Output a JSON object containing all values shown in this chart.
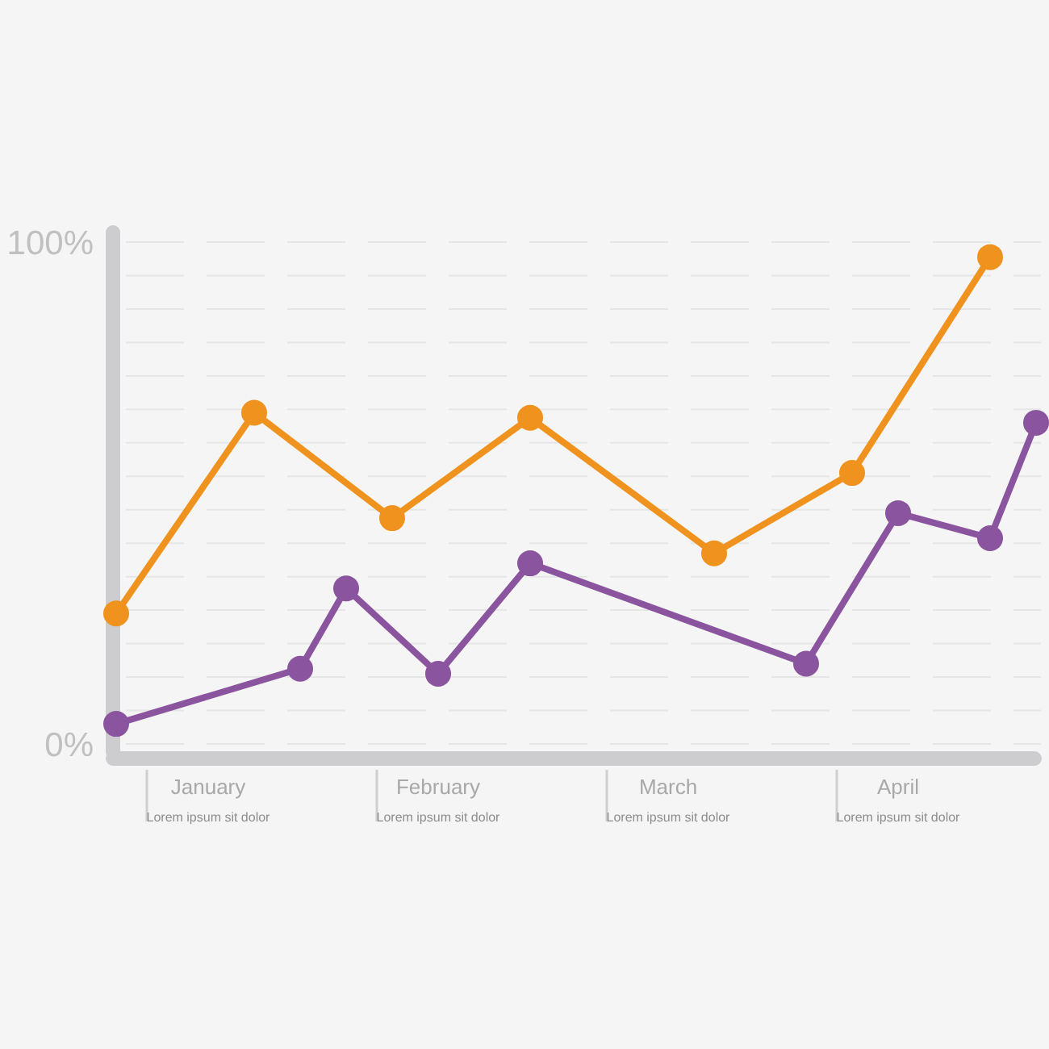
{
  "chart_data": {
    "type": "line",
    "ylim": [
      0,
      100
    ],
    "categories": [
      null,
      null,
      "January\nLorem ipsum sit dolor",
      null,
      null,
      null,
      null,
      "February\nLorem ipsum sit dolor",
      null,
      null,
      null,
      null,
      "March\nLorem ipsum sit dolor",
      null,
      null,
      null,
      null,
      "April\nLorem ipsum sit dolor",
      null,
      null,
      null
    ],
    "yticks": [
      {
        "value": 0,
        "label": "0%"
      },
      {
        "value": 6.67,
        "label": null
      },
      {
        "value": 13.33,
        "label": null
      },
      {
        "value": 20,
        "label": null
      },
      {
        "value": 26.67,
        "label": null
      },
      {
        "value": 33.33,
        "label": null
      },
      {
        "value": 40,
        "label": null
      },
      {
        "value": 46.67,
        "label": null
      },
      {
        "value": 53.33,
        "label": null
      },
      {
        "value": 60,
        "label": null
      },
      {
        "value": 66.67,
        "label": null
      },
      {
        "value": 73.33,
        "label": null
      },
      {
        "value": 80,
        "label": null
      },
      {
        "value": 86.67,
        "label": null
      },
      {
        "value": 93.33,
        "label": null
      },
      {
        "value": 100,
        "label": "100%"
      }
    ],
    "grid": "y",
    "marker": "circle",
    "line_style": "solid",
    "series": [
      {
        "color": "#f0921e",
        "values": [
          26,
          null,
          null,
          66,
          null,
          null,
          45,
          null,
          null,
          65,
          null,
          null,
          null,
          38,
          null,
          null,
          54,
          null,
          null,
          97,
          null
        ]
      },
      {
        "color": "#8a559e",
        "values": [
          4,
          null,
          null,
          null,
          15,
          31,
          null,
          14,
          null,
          36,
          null,
          null,
          null,
          null,
          null,
          16,
          null,
          46,
          null,
          41,
          64
        ]
      }
    ]
  }
}
